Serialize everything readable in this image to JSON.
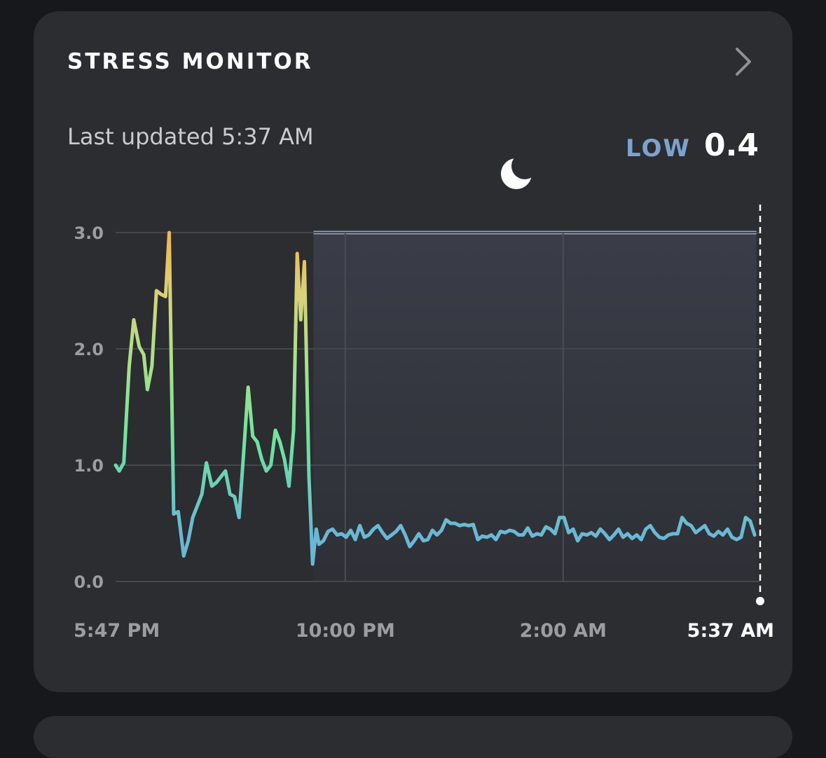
{
  "card": {
    "title": "STRESS MONITOR",
    "last_updated": "Last updated 5:37 AM",
    "level": "LOW",
    "score": "0.4",
    "chevron_icon": "chevron-right-icon",
    "moon_icon": "moon-icon"
  },
  "colors": {
    "background": "#16181b",
    "card": "#2b2d31",
    "level_text": "#7ba3cf",
    "sleep_band": "#373a44",
    "sleep_line": "#8aa5c2",
    "line_low": "#6ab8d6",
    "line_mid": "#6ee49c",
    "line_high": "#f2b553"
  },
  "chart_data": {
    "type": "line",
    "title": "",
    "xlabel": "",
    "ylabel": "",
    "ylim": [
      0,
      3
    ],
    "yticks": [
      "0.0",
      "1.0",
      "2.0",
      "3.0"
    ],
    "xticks": [
      {
        "label": "5:47 PM",
        "minute": 0
      },
      {
        "label": "10:00 PM",
        "minute": 253
      },
      {
        "label": "2:00 AM",
        "minute": 493
      },
      {
        "label": "5:37 AM",
        "minute": 710,
        "current": true
      }
    ],
    "x_range_minutes": [
      0,
      710
    ],
    "sleep": {
      "start_minute": 218,
      "end_minute": 706,
      "level": 3.0
    },
    "grid": true,
    "legend": "none",
    "series": [
      {
        "values": [
          [
            0,
            1.0
          ],
          [
            4,
            0.95
          ],
          [
            9,
            1.02
          ],
          [
            15,
            1.85
          ],
          [
            20,
            2.25
          ],
          [
            26,
            2.02
          ],
          [
            31,
            1.95
          ],
          [
            35,
            1.65
          ],
          [
            40,
            1.85
          ],
          [
            45,
            2.5
          ],
          [
            50,
            2.47
          ],
          [
            55,
            2.45
          ],
          [
            59,
            3.0
          ],
          [
            64,
            0.58
          ],
          [
            69,
            0.6
          ],
          [
            75,
            0.22
          ],
          [
            80,
            0.35
          ],
          [
            85,
            0.55
          ],
          [
            90,
            0.65
          ],
          [
            95,
            0.75
          ],
          [
            100,
            1.02
          ],
          [
            106,
            0.82
          ],
          [
            111,
            0.85
          ],
          [
            116,
            0.9
          ],
          [
            121,
            0.95
          ],
          [
            126,
            0.75
          ],
          [
            131,
            0.73
          ],
          [
            136,
            0.55
          ],
          [
            141,
            1.1
          ],
          [
            146,
            1.67
          ],
          [
            151,
            1.25
          ],
          [
            156,
            1.2
          ],
          [
            161,
            1.05
          ],
          [
            166,
            0.95
          ],
          [
            171,
            1.0
          ],
          [
            176,
            1.3
          ],
          [
            181,
            1.2
          ],
          [
            186,
            1.05
          ],
          [
            191,
            0.82
          ],
          [
            196,
            1.3
          ],
          [
            200,
            2.82
          ],
          [
            204,
            2.25
          ],
          [
            208,
            2.75
          ],
          [
            213,
            0.9
          ],
          [
            217,
            0.15
          ],
          [
            221,
            0.45
          ],
          [
            224,
            0.32
          ],
          [
            229,
            0.35
          ],
          [
            234,
            0.43
          ],
          [
            239,
            0.45
          ],
          [
            244,
            0.4
          ],
          [
            249,
            0.41
          ],
          [
            254,
            0.38
          ],
          [
            259,
            0.44
          ],
          [
            264,
            0.36
          ],
          [
            269,
            0.48
          ],
          [
            274,
            0.38
          ],
          [
            279,
            0.4
          ],
          [
            284,
            0.45
          ],
          [
            289,
            0.48
          ],
          [
            294,
            0.42
          ],
          [
            299,
            0.37
          ],
          [
            304,
            0.4
          ],
          [
            309,
            0.43
          ],
          [
            314,
            0.48
          ],
          [
            319,
            0.4
          ],
          [
            324,
            0.3
          ],
          [
            329,
            0.35
          ],
          [
            334,
            0.41
          ],
          [
            339,
            0.35
          ],
          [
            344,
            0.36
          ],
          [
            349,
            0.44
          ],
          [
            354,
            0.4
          ],
          [
            359,
            0.44
          ],
          [
            364,
            0.53
          ],
          [
            369,
            0.5
          ],
          [
            374,
            0.5
          ],
          [
            379,
            0.48
          ],
          [
            384,
            0.49
          ],
          [
            389,
            0.48
          ],
          [
            394,
            0.49
          ],
          [
            399,
            0.36
          ],
          [
            404,
            0.39
          ],
          [
            409,
            0.38
          ],
          [
            414,
            0.4
          ],
          [
            419,
            0.36
          ],
          [
            424,
            0.43
          ],
          [
            429,
            0.42
          ],
          [
            434,
            0.44
          ],
          [
            439,
            0.43
          ],
          [
            444,
            0.4
          ],
          [
            449,
            0.4
          ],
          [
            454,
            0.46
          ],
          [
            459,
            0.39
          ],
          [
            464,
            0.41
          ],
          [
            469,
            0.4
          ],
          [
            474,
            0.47
          ],
          [
            479,
            0.45
          ],
          [
            484,
            0.41
          ],
          [
            489,
            0.55
          ],
          [
            494,
            0.55
          ],
          [
            499,
            0.42
          ],
          [
            504,
            0.45
          ],
          [
            509,
            0.35
          ],
          [
            514,
            0.41
          ],
          [
            519,
            0.4
          ],
          [
            524,
            0.42
          ],
          [
            529,
            0.39
          ],
          [
            534,
            0.45
          ],
          [
            539,
            0.41
          ],
          [
            544,
            0.36
          ],
          [
            549,
            0.4
          ],
          [
            554,
            0.45
          ],
          [
            559,
            0.38
          ],
          [
            564,
            0.41
          ],
          [
            569,
            0.37
          ],
          [
            574,
            0.4
          ],
          [
            579,
            0.36
          ],
          [
            584,
            0.45
          ],
          [
            589,
            0.48
          ],
          [
            594,
            0.42
          ],
          [
            599,
            0.38
          ],
          [
            604,
            0.37
          ],
          [
            609,
            0.4
          ],
          [
            614,
            0.41
          ],
          [
            619,
            0.41
          ],
          [
            624,
            0.55
          ],
          [
            629,
            0.5
          ],
          [
            634,
            0.48
          ],
          [
            639,
            0.42
          ],
          [
            644,
            0.45
          ],
          [
            649,
            0.48
          ],
          [
            654,
            0.41
          ],
          [
            659,
            0.39
          ],
          [
            664,
            0.43
          ],
          [
            669,
            0.4
          ],
          [
            674,
            0.45
          ],
          [
            679,
            0.38
          ],
          [
            684,
            0.36
          ],
          [
            689,
            0.38
          ],
          [
            694,
            0.55
          ],
          [
            699,
            0.52
          ],
          [
            704,
            0.4
          ]
        ]
      }
    ]
  }
}
